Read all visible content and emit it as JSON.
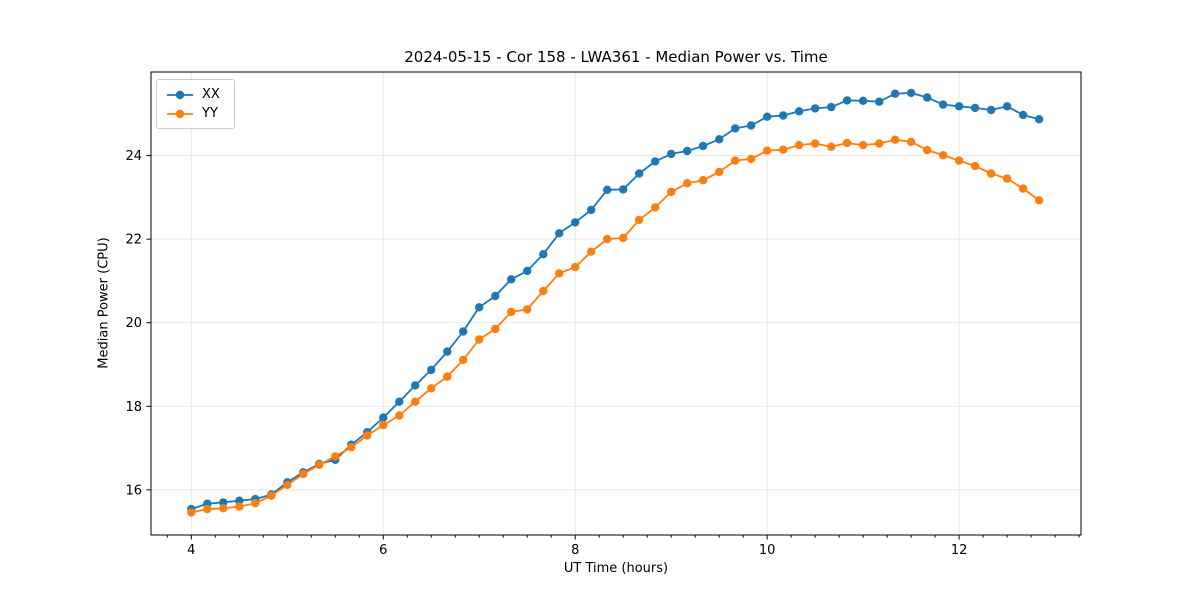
{
  "figure": {
    "title": "2024-05-15 - Cor 158 - LWA361 - Median Power vs. Time"
  },
  "chart_data": {
    "type": "line",
    "title": "2024-05-15 - Cor 158 - LWA361 - Median Power vs. Time",
    "xlabel": "UT Time (hours)",
    "ylabel": "Median Power (CPU)",
    "xlim": [
      3.58,
      13.27
    ],
    "ylim": [
      14.92,
      26.0
    ],
    "x_ticks": [
      4,
      6,
      8,
      10,
      12
    ],
    "x_minor_tick_step": 0.25,
    "y_ticks": [
      16,
      18,
      20,
      22,
      24
    ],
    "grid": true,
    "grid_color": "#e6e6e6",
    "legend_position": "upper-left",
    "x": [
      4.0,
      4.167,
      4.333,
      4.5,
      4.667,
      4.833,
      5.0,
      5.167,
      5.333,
      5.5,
      5.667,
      5.833,
      6.0,
      6.167,
      6.333,
      6.5,
      6.667,
      6.833,
      7.0,
      7.167,
      7.333,
      7.5,
      7.667,
      7.833,
      8.0,
      8.167,
      8.333,
      8.5,
      8.667,
      8.833,
      9.0,
      9.167,
      9.333,
      9.5,
      9.667,
      9.833,
      10.0,
      10.167,
      10.333,
      10.5,
      10.667,
      10.833,
      11.0,
      11.167,
      11.333,
      11.5,
      11.667,
      11.833,
      12.0,
      12.167,
      12.333,
      12.5,
      12.667,
      12.833
    ],
    "series": [
      {
        "name": "XX",
        "color": "#1f77b4",
        "values": [
          15.54,
          15.67,
          15.7,
          15.74,
          15.78,
          15.89,
          16.18,
          16.42,
          16.62,
          16.72,
          17.08,
          17.38,
          17.73,
          18.11,
          18.5,
          18.87,
          19.31,
          19.79,
          20.37,
          20.64,
          21.04,
          21.24,
          21.64,
          22.14,
          22.4,
          22.7,
          23.18,
          23.19,
          23.57,
          23.86,
          24.04,
          24.11,
          24.23,
          24.39,
          24.65,
          24.72,
          24.93,
          24.96,
          25.06,
          25.13,
          25.16,
          25.32,
          25.31,
          25.29,
          25.48,
          25.5,
          25.39,
          25.22,
          25.18,
          25.14,
          25.09,
          25.18,
          24.97,
          24.87
        ]
      },
      {
        "name": "YY",
        "color": "#ff7f0e",
        "values": [
          15.46,
          15.54,
          15.56,
          15.6,
          15.68,
          15.86,
          16.12,
          16.38,
          16.6,
          16.8,
          17.02,
          17.3,
          17.55,
          17.78,
          18.11,
          18.43,
          18.71,
          19.11,
          19.6,
          19.85,
          20.26,
          20.32,
          20.76,
          21.18,
          21.33,
          21.7,
          22.0,
          22.03,
          22.46,
          22.76,
          23.13,
          23.34,
          23.41,
          23.61,
          23.88,
          23.92,
          24.12,
          24.14,
          24.25,
          24.29,
          24.21,
          24.3,
          24.25,
          24.29,
          24.38,
          24.33,
          24.13,
          24.01,
          23.88,
          23.75,
          23.57,
          23.45,
          23.21,
          22.93
        ]
      }
    ]
  }
}
